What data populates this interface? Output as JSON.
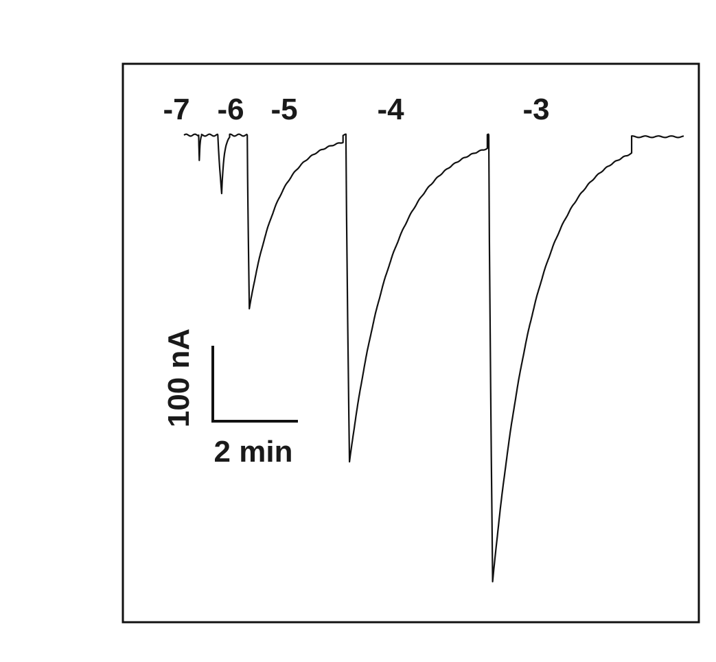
{
  "chart_data": {
    "type": "line",
    "title": "",
    "xlabel": "",
    "ylabel": "",
    "baseline_nA": 0,
    "xlim_min": [
      0,
      19
    ],
    "ylim_nA": [
      -345,
      10
    ],
    "scale_bar": {
      "vertical_value": 100,
      "vertical_label": "100 nA",
      "horizontal_value": 2,
      "horizontal_label": "2 min"
    },
    "responses": [
      {
        "label": "-7",
        "onset_min": 0.5,
        "peak_nA": -16,
        "peak_time_min": 0.52,
        "end_min": 0.6
      },
      {
        "label": "-6",
        "onset_min": 1.15,
        "peak_nA": -37,
        "peak_time_min": 1.28,
        "end_min": 1.55
      },
      {
        "label": "-5",
        "onset_min": 2.15,
        "peak_nA": -110,
        "peak_time_min": 2.22,
        "end_min": 5.4
      },
      {
        "label": "-4",
        "onset_min": 5.5,
        "peak_nA": -207,
        "peak_time_min": 5.62,
        "end_min": 10.3
      },
      {
        "label": "-3",
        "onset_min": 10.35,
        "peak_nA": -283,
        "peak_time_min": 10.48,
        "end_min": 15.2
      }
    ],
    "trace_end_min": 17.0
  }
}
